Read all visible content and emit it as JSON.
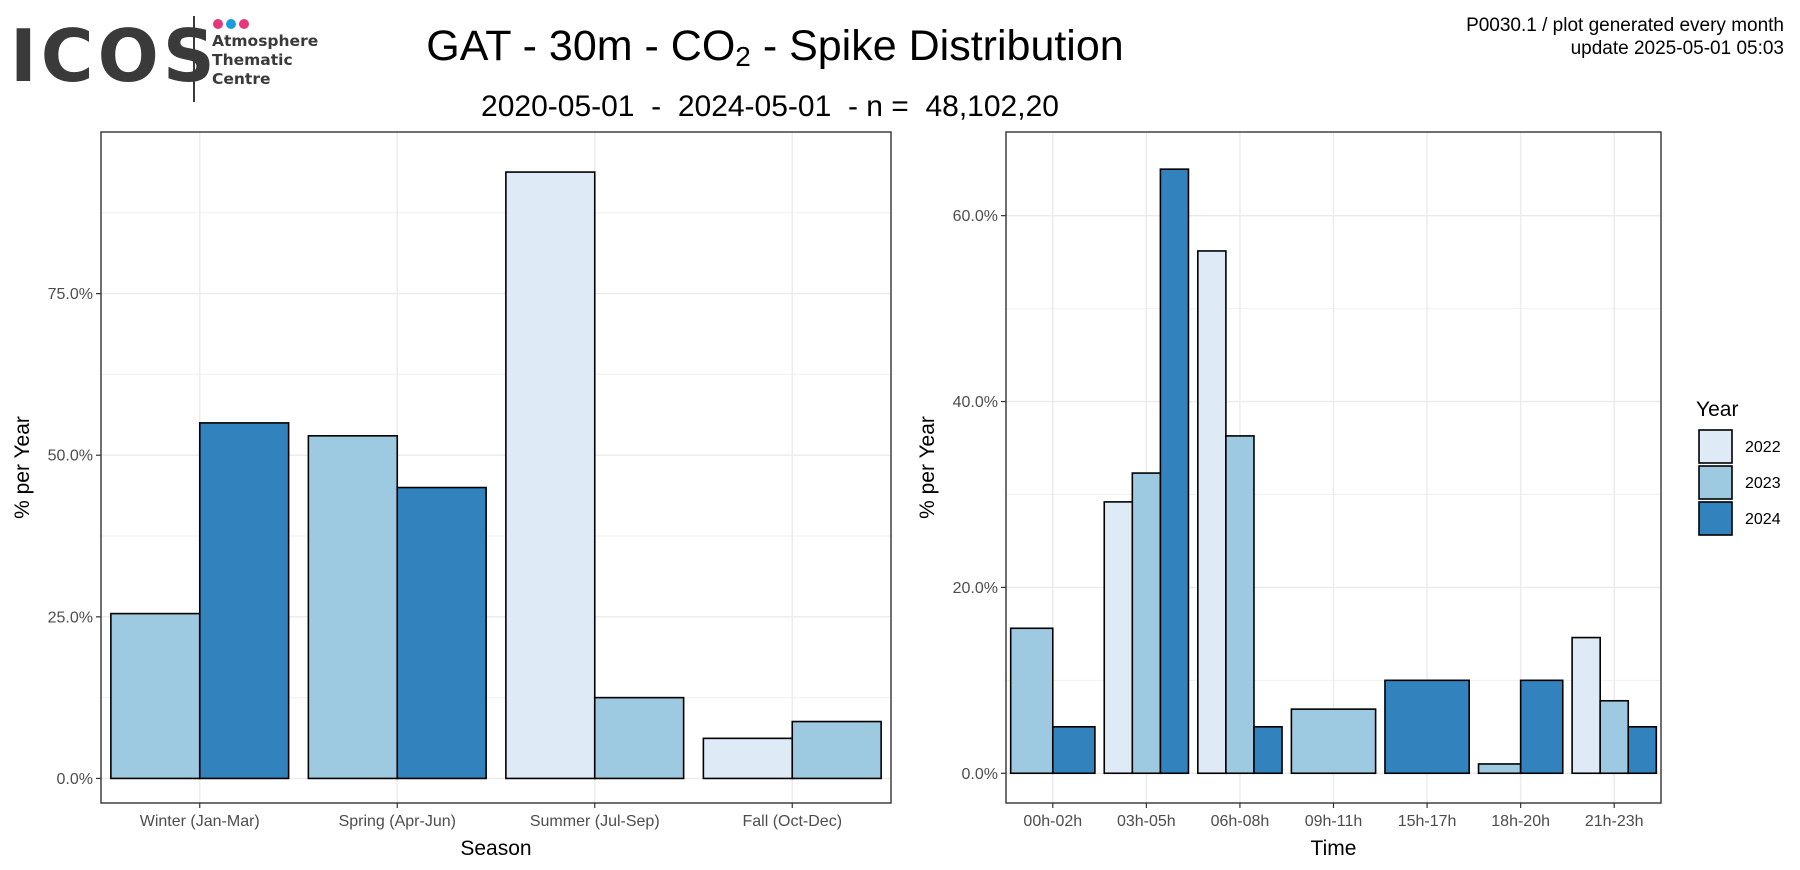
{
  "logo": {
    "wordmark": "ICOS",
    "lines": [
      "Atmosphere",
      "Thematic",
      "Centre"
    ],
    "dot_colors": [
      "#e6377a",
      "#1e9be0",
      "#e6377a"
    ],
    "text_color": "#3a3a3a"
  },
  "header": {
    "title_pre": "GAT - 30m - CO",
    "title_sub": "2",
    "title_post": " - Spike Distribution",
    "subtitle": "2020-05-01  -  2024-05-01  - n =  48,102,20",
    "note_line1": "P0030.1 / plot generated every month",
    "note_line2": "update  2025-05-01 05:03"
  },
  "legend": {
    "title": "Year",
    "items": [
      {
        "label": "2022",
        "color": "#deebf7"
      },
      {
        "label": "2023",
        "color": "#9ecae1"
      },
      {
        "label": "2024",
        "color": "#3182bd"
      }
    ]
  },
  "chart_data": [
    {
      "type": "bar",
      "title": "",
      "xlabel": "Season",
      "ylabel": "% per Year",
      "ylim": [
        -3.8,
        100
      ],
      "yticks": [
        0,
        25,
        50,
        75
      ],
      "ytick_labels": [
        "0.0%",
        "25.0%",
        "50.0%",
        "75.0%"
      ],
      "grid": true,
      "categories": [
        "Winter (Jan-Mar)",
        "Spring (Apr-Jun)",
        "Summer (Jul-Sep)",
        "Fall (Oct-Dec)"
      ],
      "groups": [
        {
          "category": "Winter (Jan-Mar)",
          "bars": [
            {
              "year": "2023",
              "value": 25.5
            },
            {
              "year": "2024",
              "value": 55.0
            }
          ]
        },
        {
          "category": "Spring (Apr-Jun)",
          "bars": [
            {
              "year": "2023",
              "value": 53.0
            },
            {
              "year": "2024",
              "value": 45.0
            }
          ]
        },
        {
          "category": "Summer (Jul-Sep)",
          "bars": [
            {
              "year": "2022",
              "value": 93.8
            },
            {
              "year": "2023",
              "value": 12.5
            }
          ]
        },
        {
          "category": "Fall (Oct-Dec)",
          "bars": [
            {
              "year": "2022",
              "value": 6.2
            },
            {
              "year": "2023",
              "value": 8.8
            }
          ]
        }
      ]
    },
    {
      "type": "bar",
      "title": "",
      "xlabel": "Time",
      "ylabel": "% per Year",
      "ylim": [
        -3.2,
        69.0
      ],
      "yticks": [
        0,
        20,
        40,
        60
      ],
      "ytick_labels": [
        "0.0%",
        "20.0%",
        "40.0%",
        "60.0%"
      ],
      "grid": true,
      "categories": [
        "00h-02h",
        "03h-05h",
        "06h-08h",
        "09h-11h",
        "15h-17h",
        "18h-20h",
        "21h-23h"
      ],
      "groups": [
        {
          "category": "00h-02h",
          "bars": [
            {
              "year": "2023",
              "value": 15.6
            },
            {
              "year": "2024",
              "value": 5.0
            }
          ]
        },
        {
          "category": "03h-05h",
          "bars": [
            {
              "year": "2022",
              "value": 29.2
            },
            {
              "year": "2023",
              "value": 32.3
            },
            {
              "year": "2024",
              "value": 65.0
            }
          ]
        },
        {
          "category": "06h-08h",
          "bars": [
            {
              "year": "2022",
              "value": 56.2
            },
            {
              "year": "2023",
              "value": 36.3
            },
            {
              "year": "2024",
              "value": 5.0
            }
          ]
        },
        {
          "category": "09h-11h",
          "bars": [
            {
              "year": "2023",
              "value": 6.9
            }
          ]
        },
        {
          "category": "15h-17h",
          "bars": [
            {
              "year": "2024",
              "value": 10.0
            }
          ]
        },
        {
          "category": "18h-20h",
          "bars": [
            {
              "year": "2023",
              "value": 1.0
            },
            {
              "year": "2024",
              "value": 10.0
            }
          ]
        },
        {
          "category": "21h-23h",
          "bars": [
            {
              "year": "2022",
              "value": 14.6
            },
            {
              "year": "2023",
              "value": 7.8
            },
            {
              "year": "2024",
              "value": 5.0
            }
          ]
        }
      ]
    }
  ]
}
